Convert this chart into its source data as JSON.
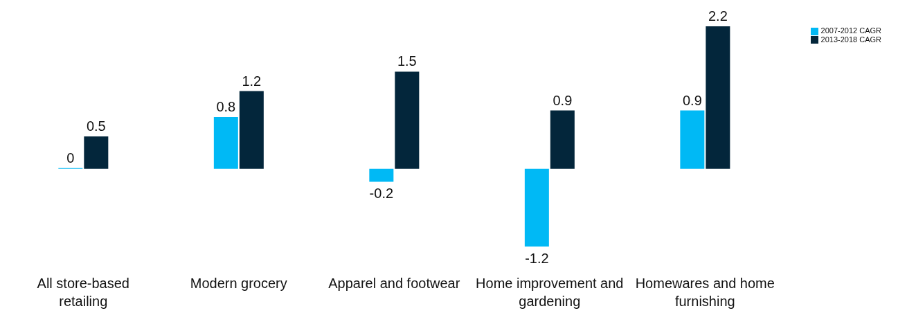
{
  "chart_data": {
    "type": "bar",
    "categories": [
      "All store-based retailing",
      "Modern grocery",
      "Apparel and footwear",
      "Home improvement and gardening",
      "Homewares and home furnishing"
    ],
    "series": [
      {
        "name": "2007-2012 CAGR",
        "color": "#00b9f5",
        "values": [
          0,
          0.8,
          -0.2,
          -1.2,
          0.9
        ]
      },
      {
        "name": "2013-2018 CAGR",
        "color": "#03263b",
        "values": [
          0.5,
          1.2,
          1.5,
          0.9,
          2.2
        ]
      }
    ],
    "data_labels": true,
    "legend": "top right",
    "grid": false
  }
}
